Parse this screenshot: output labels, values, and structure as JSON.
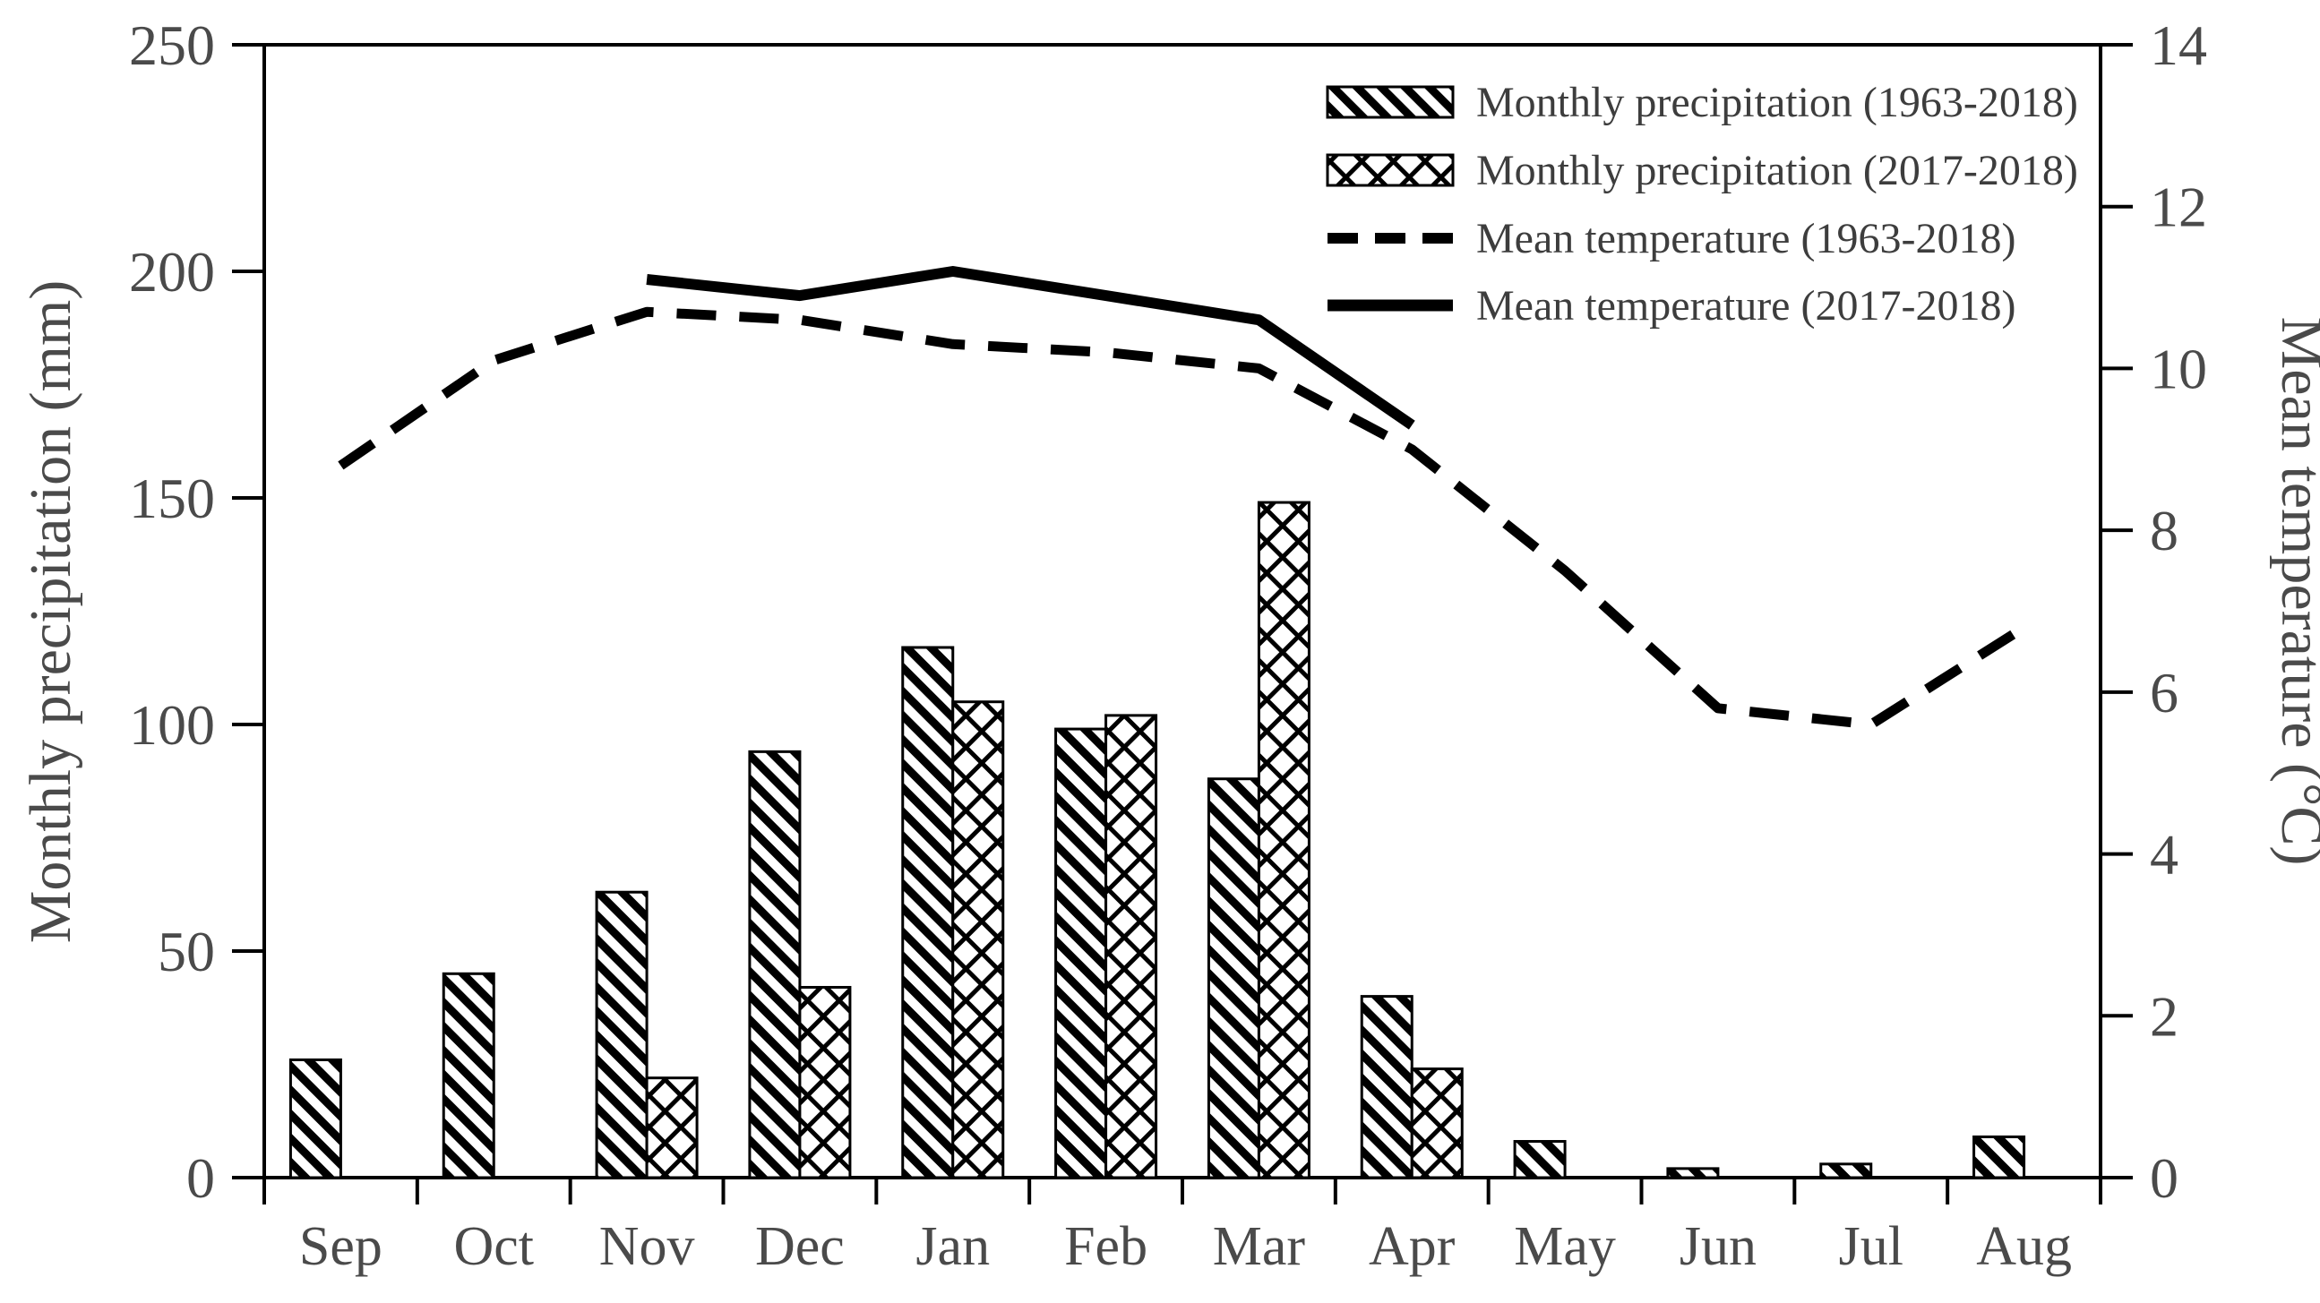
{
  "chart_data": {
    "type": "combo-bar-line",
    "title": "",
    "categories": [
      "Sep",
      "Oct",
      "Nov",
      "Dec",
      "Jan",
      "Feb",
      "Mar",
      "Apr",
      "May",
      "Jun",
      "Jul",
      "Aug"
    ],
    "series": [
      {
        "name": "Monthly precipitation (1963-2018)",
        "type": "bar",
        "pattern": "diagonal-hatch",
        "axis": "left",
        "unit": "mm",
        "values": [
          26,
          45,
          63,
          94,
          117,
          99,
          88,
          40,
          8,
          2,
          3,
          9
        ]
      },
      {
        "name": "Monthly precipitation (2017-2018)",
        "type": "bar",
        "pattern": "crosshatch",
        "axis": "left",
        "unit": "mm",
        "values": [
          null,
          null,
          22,
          42,
          105,
          102,
          149,
          24,
          null,
          null,
          null,
          null
        ]
      },
      {
        "name": "Mean temperature (1963-2018)",
        "type": "line",
        "style": "dashed",
        "axis": "right",
        "unit": "°C",
        "values": [
          8.8,
          10.1,
          10.7,
          10.6,
          10.3,
          10.2,
          10.0,
          9.0,
          7.5,
          5.8,
          5.6,
          6.8
        ]
      },
      {
        "name": "Mean temperature (2017-2018)",
        "type": "line",
        "style": "solid",
        "axis": "right",
        "unit": "°C",
        "values": [
          null,
          null,
          11.1,
          10.9,
          11.2,
          10.9,
          10.6,
          9.3,
          null,
          null,
          null,
          null
        ]
      }
    ],
    "left_axis": {
      "label": "Monthly precipitation (mm)",
      "min": 0,
      "max": 250,
      "step": 50,
      "ticks": [
        "0",
        "50",
        "100",
        "150",
        "200",
        "250"
      ]
    },
    "right_axis": {
      "label": "Mean temperature (°C)",
      "min": 0,
      "max": 14,
      "step": 2,
      "ticks": [
        "0",
        "2",
        "4",
        "6",
        "8",
        "10",
        "12",
        "14"
      ]
    },
    "legend": {
      "position": "top-right-inside"
    },
    "grid": false,
    "colors": {
      "ink": "#000000",
      "text": "#4a4a4a",
      "background": "#ffffff"
    }
  }
}
